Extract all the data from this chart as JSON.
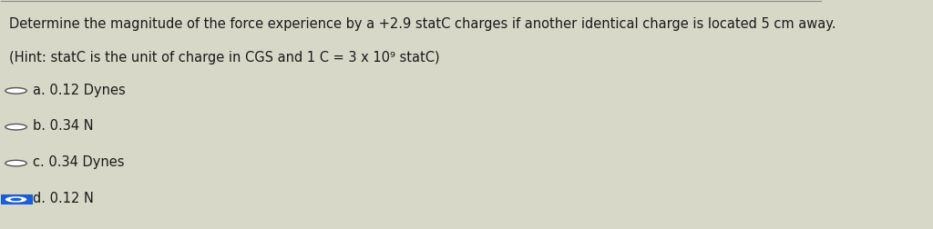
{
  "title_line1": "Determine the magnitude of the force experience by a +2.9 statC charges if another identical charge is located 5 cm away.",
  "title_line2": "(Hint: statC is the unit of charge in CGS and 1 C = 3 x 10⁹ statC)",
  "options": [
    {
      "label": "a. 0.12 Dynes",
      "selected": false
    },
    {
      "label": "b. 0.34 N",
      "selected": false
    },
    {
      "label": "c. 0.34 Dynes",
      "selected": false
    },
    {
      "label": "d. 0.12 N",
      "selected": true
    }
  ],
  "bg_color": "#d8d8c8",
  "text_color": "#1a1a1a",
  "radio_color": "#ffffff",
  "radio_border": "#555555",
  "selected_fill": "#1a5fd4",
  "selected_border": "#1a5fd4",
  "font_size_title": 10.5,
  "font_size_options": 10.5
}
